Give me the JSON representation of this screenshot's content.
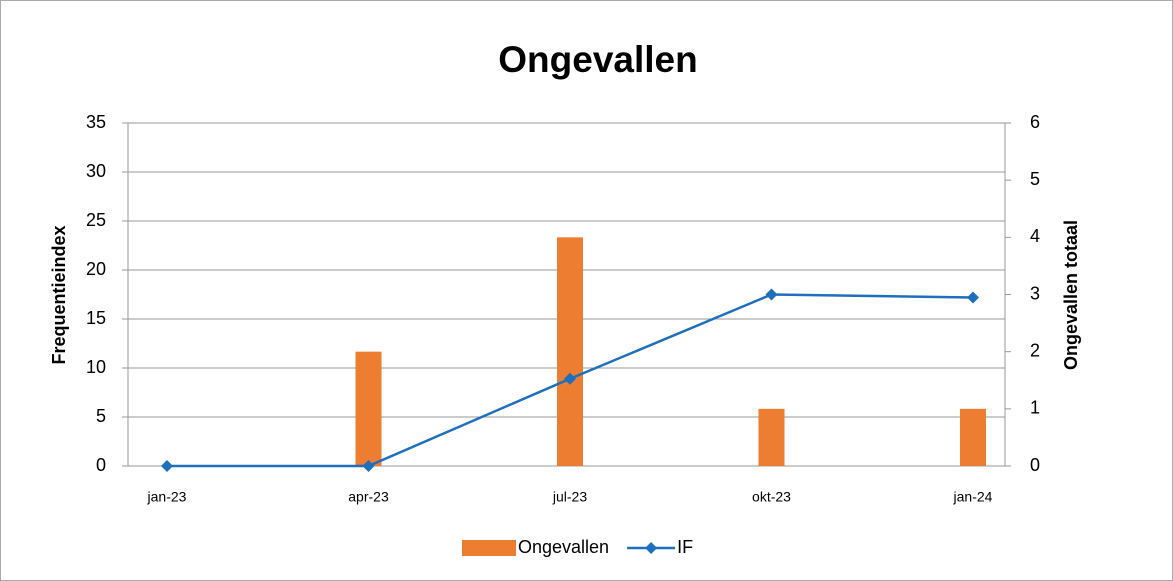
{
  "chart_data": {
    "type": "bar",
    "title": "Ongevallen",
    "categories": [
      "jan-23",
      "apr-23",
      "jul-23",
      "okt-23",
      "jan-24"
    ],
    "series": [
      {
        "name": "Ongevallen",
        "type": "bar",
        "axis": "y2",
        "color": "#ed7d31",
        "values": [
          0,
          2,
          4,
          1,
          1
        ]
      },
      {
        "name": "IF",
        "type": "line",
        "axis": "y",
        "color": "#1f6fbf",
        "values": [
          0,
          0,
          8.9,
          17.5,
          17.2
        ]
      }
    ],
    "ylabel": "Frequentieindex",
    "y2label": "Ongevallen totaal",
    "ylim": [
      0,
      35
    ],
    "yticks": [
      0,
      5,
      10,
      15,
      20,
      25,
      30,
      35
    ],
    "y2lim": [
      0,
      6
    ],
    "y2ticks": [
      0,
      1,
      2,
      3,
      4,
      5,
      6
    ],
    "grid": true,
    "legend": "bottom"
  }
}
